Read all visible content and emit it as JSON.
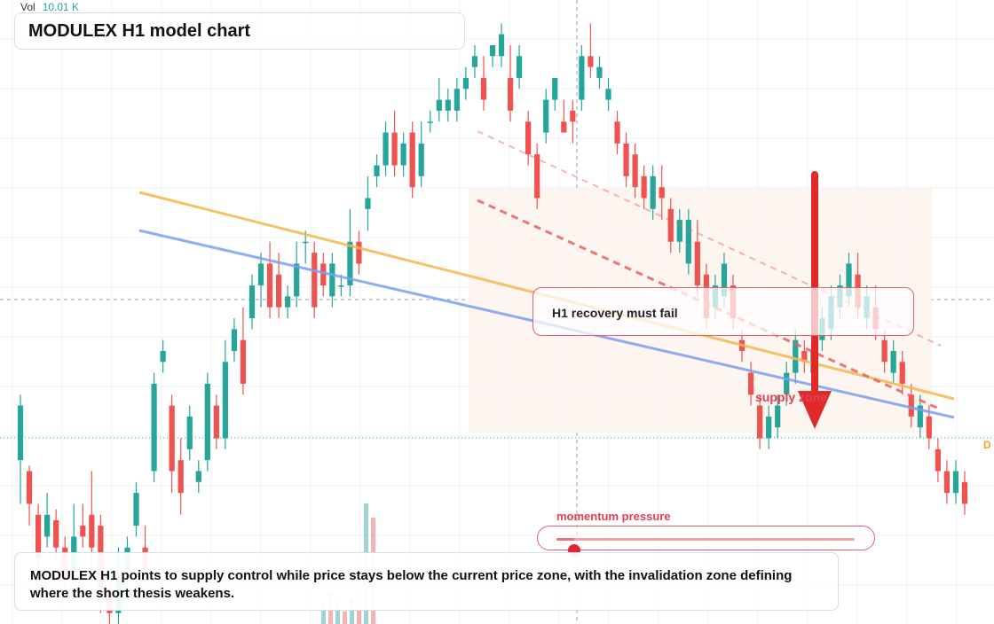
{
  "header": {
    "vol_label": "Vol",
    "vol_value": "10.01 K",
    "title": "MODULEX H1 model chart"
  },
  "annotations": {
    "callout": "H1 recovery must fail",
    "zone_label": "supply zone",
    "momentum_label": "momentum pressure",
    "momentum_level": 0.06,
    "summary": "MODULEX H1 points to supply control while price stays below the current price zone, with the invalidation zone defining where the short thesis weakens.",
    "price_tag": "D"
  },
  "colors": {
    "up": "#26a69a",
    "down": "#ef5350",
    "trend_orange": "#f5b74f",
    "trend_blue": "#7b9ff0",
    "channel_red": "#e86060",
    "arrow": "#e02a2a",
    "zone_fill": "#fdf4ee",
    "price_line": "#26a69a"
  },
  "chart_data": {
    "type": "candlestick",
    "title": "MODULEX H1 model chart",
    "scale": {
      "y_min": 0,
      "y_max": 100
    },
    "candles": [
      [
        30,
        40,
        22,
        42
      ],
      [
        28,
        22,
        18,
        29
      ],
      [
        20,
        12,
        10,
        22
      ],
      [
        16,
        20,
        14,
        24
      ],
      [
        19,
        14,
        12,
        21
      ],
      [
        14,
        8,
        6,
        16
      ],
      [
        10,
        16,
        8,
        22
      ],
      [
        18,
        16,
        14,
        22
      ],
      [
        20,
        14,
        10,
        28
      ],
      [
        18,
        6,
        2,
        20
      ],
      [
        6,
        2,
        0,
        8
      ],
      [
        2,
        8,
        0,
        14
      ],
      [
        10,
        14,
        8,
        16
      ],
      [
        18,
        24,
        16,
        26
      ],
      [
        14,
        10,
        8,
        18
      ],
      [
        28,
        44,
        26,
        46
      ],
      [
        48,
        50,
        46,
        52
      ],
      [
        40,
        28,
        24,
        42
      ],
      [
        30,
        24,
        20,
        34
      ],
      [
        32,
        38,
        30,
        40
      ],
      [
        26,
        28,
        24,
        30
      ],
      [
        30,
        44,
        28,
        46
      ],
      [
        40,
        34,
        32,
        42
      ],
      [
        34,
        48,
        32,
        52
      ],
      [
        50,
        54,
        48,
        56
      ],
      [
        52,
        44,
        42,
        58
      ],
      [
        56,
        62,
        54,
        64
      ],
      [
        62,
        66,
        58,
        68
      ],
      [
        66,
        58,
        56,
        70
      ],
      [
        64,
        58,
        56,
        68
      ],
      [
        58,
        60,
        56,
        62
      ],
      [
        60,
        66,
        58,
        70
      ],
      [
        70,
        70,
        66,
        72
      ],
      [
        68,
        58,
        56,
        70
      ],
      [
        66,
        62,
        60,
        68
      ],
      [
        60,
        66,
        58,
        68
      ],
      [
        62,
        62,
        60,
        64
      ],
      [
        62,
        70,
        60,
        76
      ],
      [
        70,
        66,
        64,
        72
      ],
      [
        76,
        78,
        72,
        82
      ],
      [
        82,
        84,
        80,
        86
      ],
      [
        84,
        90,
        82,
        92
      ],
      [
        90,
        84,
        82,
        94
      ],
      [
        84,
        88,
        82,
        90
      ],
      [
        90,
        80,
        78,
        92
      ],
      [
        82,
        88,
        80,
        92
      ],
      [
        92,
        92,
        90,
        94
      ],
      [
        94,
        96,
        92,
        100
      ],
      [
        94,
        96,
        92,
        98
      ],
      [
        94,
        98,
        92,
        100
      ],
      [
        98,
        100,
        96,
        102
      ],
      [
        102,
        104,
        100,
        106
      ],
      [
        100,
        96,
        94,
        104
      ],
      [
        104,
        106,
        102,
        106
      ],
      [
        104,
        108,
        102,
        110
      ],
      [
        100,
        94,
        92,
        106
      ],
      [
        100,
        104,
        98,
        106
      ],
      [
        92,
        86,
        84,
        94
      ],
      [
        86,
        78,
        76,
        88
      ],
      [
        90,
        96,
        88,
        98
      ],
      [
        96,
        100,
        94,
        100
      ],
      [
        92,
        90,
        90,
        96
      ],
      [
        94,
        92,
        88,
        96
      ],
      [
        96,
        104,
        94,
        106
      ],
      [
        104,
        102,
        100,
        110
      ],
      [
        100,
        102,
        98,
        104
      ],
      [
        96,
        98,
        94,
        100
      ],
      [
        92,
        88,
        86,
        94
      ],
      [
        88,
        82,
        80,
        90
      ],
      [
        86,
        80,
        78,
        88
      ],
      [
        82,
        78,
        76,
        84
      ],
      [
        76,
        82,
        74,
        84
      ],
      [
        80,
        78,
        74,
        84
      ],
      [
        76,
        70,
        68,
        78
      ],
      [
        70,
        74,
        68,
        76
      ],
      [
        66,
        74,
        64,
        76
      ],
      [
        70,
        62,
        60,
        74
      ],
      [
        64,
        56,
        54,
        66
      ],
      [
        58,
        62,
        56,
        64
      ],
      [
        60,
        66,
        58,
        68
      ],
      [
        62,
        56,
        54,
        64
      ],
      [
        52,
        50,
        48,
        54
      ],
      [
        46,
        42,
        40,
        48
      ],
      [
        40,
        34,
        32,
        42
      ],
      [
        34,
        38,
        32,
        40
      ],
      [
        36,
        40,
        34,
        42
      ],
      [
        42,
        46,
        40,
        48
      ],
      [
        46,
        52,
        44,
        54
      ],
      [
        50,
        48,
        46,
        52
      ],
      [
        46,
        50,
        44,
        54
      ],
      [
        52,
        56,
        50,
        58
      ],
      [
        54,
        60,
        52,
        62
      ],
      [
        58,
        62,
        56,
        64
      ],
      [
        60,
        66,
        58,
        68
      ],
      [
        64,
        58,
        56,
        68
      ],
      [
        56,
        60,
        54,
        62
      ],
      [
        58,
        54,
        52,
        62
      ],
      [
        52,
        48,
        46,
        54
      ],
      [
        46,
        50,
        44,
        52
      ],
      [
        48,
        44,
        42,
        50
      ],
      [
        42,
        38,
        36,
        44
      ],
      [
        36,
        40,
        34,
        42
      ],
      [
        38,
        34,
        32,
        40
      ],
      [
        32,
        28,
        26,
        34
      ],
      [
        28,
        24,
        22,
        30
      ],
      [
        24,
        28,
        22,
        30
      ],
      [
        26,
        22,
        20,
        28
      ]
    ],
    "volume": [
      [
        0.14,
        "up"
      ],
      [
        0.22,
        "down"
      ],
      [
        0.16,
        "up"
      ],
      [
        0.09,
        "down"
      ],
      [
        0.18,
        "up"
      ],
      [
        0.11,
        "down"
      ],
      [
        0.85,
        "up"
      ],
      [
        0.75,
        "down"
      ]
    ],
    "trendlines": [
      {
        "name": "orange_trend",
        "points": [
          [
            0,
            71
          ],
          [
            1,
            30
          ]
        ]
      },
      {
        "name": "blue_trend",
        "points": [
          [
            0,
            60
          ],
          [
            1,
            22
          ]
        ]
      }
    ]
  }
}
